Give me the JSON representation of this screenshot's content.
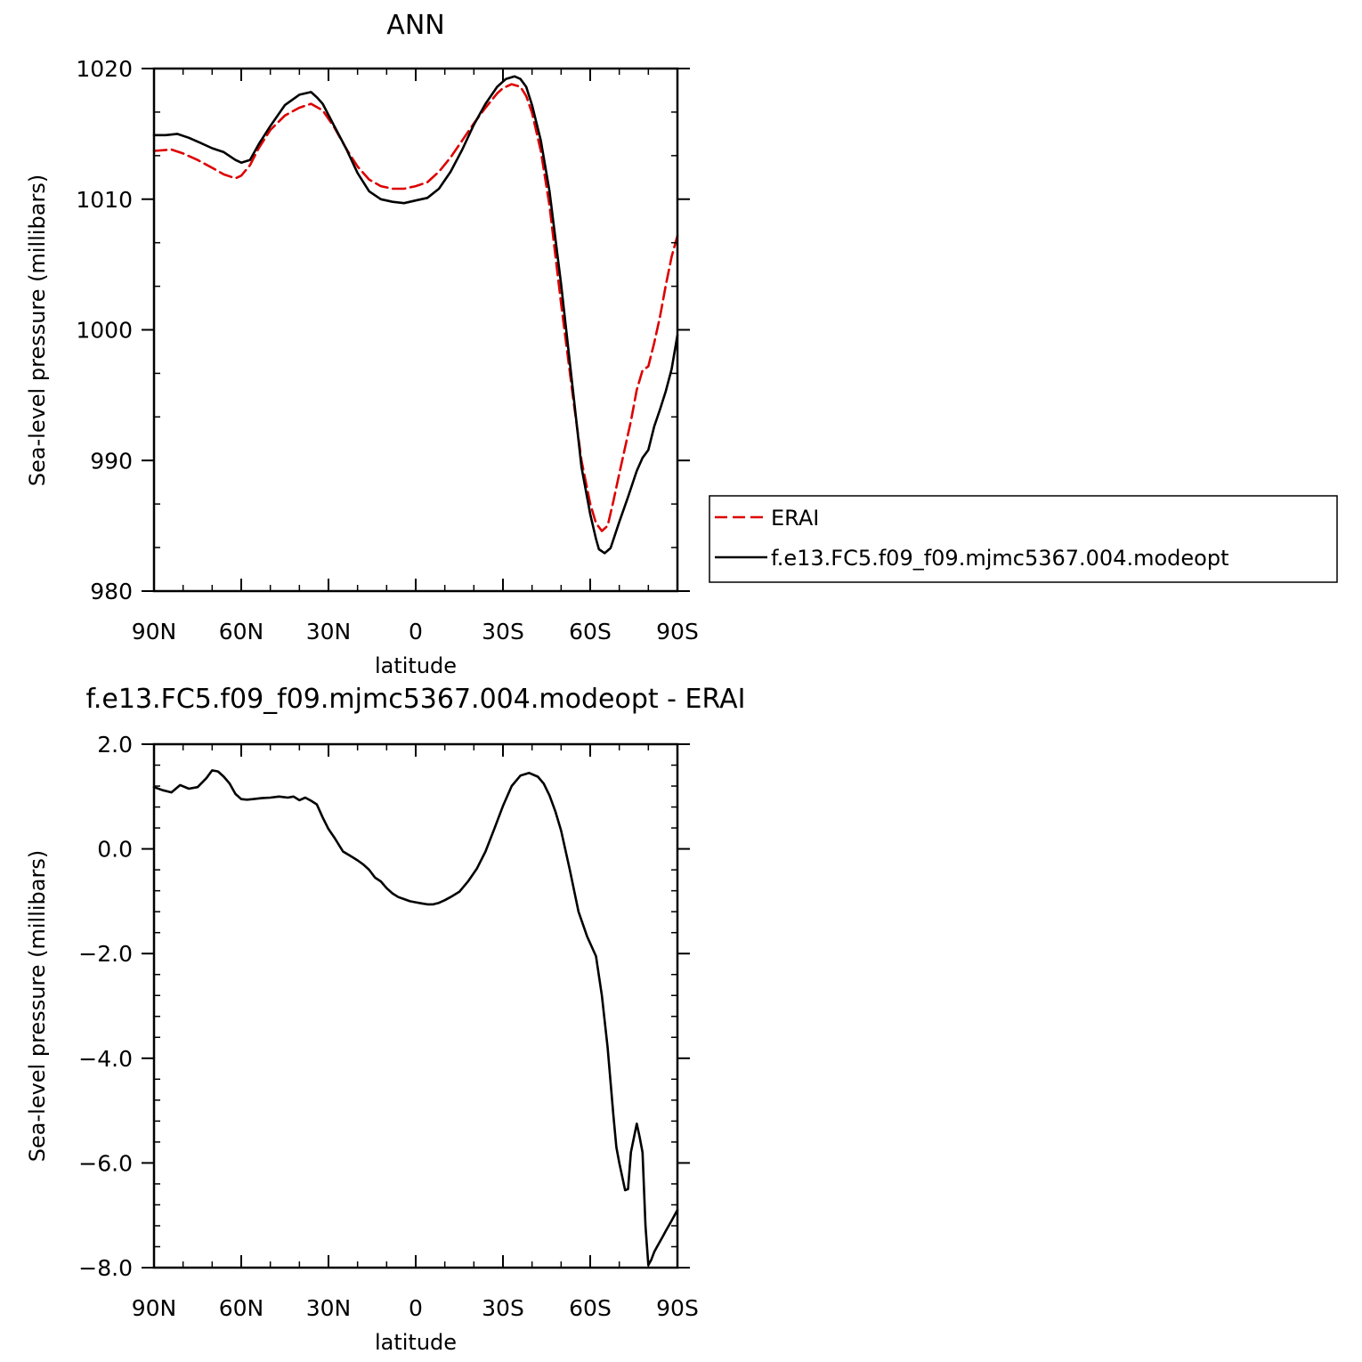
{
  "chart_data": [
    {
      "type": "line",
      "title": "ANN",
      "xlabel": "latitude",
      "ylabel": "Sea-level pressure (millibars)",
      "xlim": [
        90,
        -90
      ],
      "ylim": [
        980,
        1020
      ],
      "xticks": [
        90,
        60,
        30,
        0,
        -30,
        -60,
        -90
      ],
      "xtick_labels": [
        "90N",
        "60N",
        "30N",
        "0",
        "30S",
        "60S",
        "90S"
      ],
      "yticks": [
        980,
        990,
        1000,
        1010,
        1020
      ],
      "ytick_labels": [
        "980",
        "990",
        "1000",
        "1010",
        "1020"
      ],
      "legend_position": "right",
      "series": [
        {
          "name": "ERAI",
          "color": "#dd0000",
          "dash": "dashed",
          "x": [
            90,
            84,
            80,
            75,
            70,
            66,
            62,
            60,
            57,
            54,
            50,
            45,
            40,
            36,
            32,
            28,
            24,
            20,
            16,
            12,
            8,
            4,
            0,
            -4,
            -8,
            -12,
            -16,
            -20,
            -24,
            -28,
            -30,
            -33,
            -36,
            -38,
            -40,
            -43,
            -46,
            -50,
            -54,
            -57,
            -60,
            -62,
            -64,
            -66,
            -68,
            -70,
            -72,
            -74,
            -76,
            -78,
            -80,
            -82,
            -84,
            -86,
            -88,
            -90
          ],
          "y": [
            1013.7,
            1013.8,
            1013.5,
            1013.0,
            1012.4,
            1011.9,
            1011.6,
            1011.8,
            1012.6,
            1013.9,
            1015.3,
            1016.4,
            1017.0,
            1017.3,
            1016.8,
            1015.5,
            1013.9,
            1012.5,
            1011.5,
            1011.0,
            1010.8,
            1010.8,
            1011.0,
            1011.3,
            1012.1,
            1013.2,
            1014.5,
            1015.8,
            1017.0,
            1018.1,
            1018.5,
            1018.8,
            1018.6,
            1017.9,
            1016.6,
            1013.7,
            1009.5,
            1002.0,
            995.0,
            990.0,
            986.7,
            985.2,
            984.6,
            985.0,
            986.9,
            989.0,
            991.0,
            993.0,
            995.4,
            996.9,
            997.2,
            999.0,
            1001.0,
            1003.4,
            1005.6,
            1007.2
          ]
        },
        {
          "name": "f.e13.FC5.f09_f09.mjmc5367.004.modeopt",
          "color": "#000000",
          "dash": "solid",
          "x": [
            90,
            86,
            82,
            78,
            74,
            70,
            66,
            62,
            60,
            57,
            54,
            50,
            45,
            40,
            38,
            36,
            34,
            32,
            28,
            24,
            20,
            16,
            12,
            8,
            4,
            0,
            -4,
            -8,
            -12,
            -16,
            -20,
            -24,
            -28,
            -31,
            -34,
            -36,
            -38,
            -40,
            -43,
            -46,
            -50,
            -54,
            -57,
            -60,
            -62,
            -63,
            -65,
            -67,
            -70,
            -73,
            -76,
            -78,
            -80,
            -82,
            -84,
            -86,
            -88,
            -90
          ],
          "y": [
            1014.9,
            1014.9,
            1015.0,
            1014.7,
            1014.3,
            1013.9,
            1013.6,
            1013.0,
            1012.8,
            1013.0,
            1014.2,
            1015.6,
            1017.2,
            1018.0,
            1018.1,
            1018.2,
            1017.8,
            1017.3,
            1015.6,
            1013.9,
            1012.0,
            1010.6,
            1010.0,
            1009.8,
            1009.7,
            1009.9,
            1010.1,
            1010.8,
            1012.1,
            1013.8,
            1015.7,
            1017.3,
            1018.6,
            1019.2,
            1019.4,
            1019.2,
            1018.6,
            1017.2,
            1014.5,
            1010.6,
            1003.5,
            995.5,
            989.5,
            985.9,
            984.0,
            983.2,
            982.9,
            983.3,
            985.3,
            987.2,
            989.2,
            990.2,
            990.8,
            992.6,
            993.9,
            995.3,
            997.0,
            999.6
          ]
        }
      ]
    },
    {
      "type": "line",
      "title": "f.e13.FC5.f09_f09.mjmc5367.004.modeopt  -  ERAI",
      "xlabel": "latitude",
      "ylabel": "Sea-level pressure (millibars)",
      "xlim": [
        90,
        -90
      ],
      "ylim": [
        -8.0,
        2.0
      ],
      "xticks": [
        90,
        60,
        30,
        0,
        -30,
        -60,
        -90
      ],
      "xtick_labels": [
        "90N",
        "60N",
        "30N",
        "0",
        "30S",
        "60S",
        "90S"
      ],
      "yticks": [
        -8.0,
        -6.0,
        -4.0,
        -2.0,
        0.0,
        2.0
      ],
      "ytick_labels": [
        "−8.0",
        "−6.0",
        "−4.0",
        "−2.0",
        "0.0",
        "2.0"
      ],
      "series": [
        {
          "color": "#000000",
          "dash": "solid",
          "x": [
            90,
            87,
            84,
            81,
            78,
            75,
            72,
            70,
            68,
            66,
            64,
            62,
            60,
            58,
            56,
            53,
            50,
            47,
            44,
            42,
            40,
            38,
            36,
            34,
            32,
            30,
            28,
            25,
            22,
            20,
            18,
            16,
            14,
            12,
            10,
            8,
            6,
            4,
            2,
            0,
            -2,
            -4,
            -6,
            -8,
            -10,
            -12,
            -15,
            -18,
            -21,
            -24,
            -27,
            -30,
            -33,
            -36,
            -39,
            -42,
            -44,
            -46,
            -48,
            -50,
            -53,
            -56,
            -59,
            -62,
            -64,
            -66,
            -68,
            -69,
            -70,
            -72,
            -73,
            -74,
            -76,
            -77,
            -78,
            -79,
            -80,
            -81,
            -82,
            -83,
            -84,
            -85,
            -86,
            -87,
            -88,
            -89,
            -90
          ],
          "y": [
            1.18,
            1.12,
            1.08,
            1.22,
            1.15,
            1.18,
            1.35,
            1.5,
            1.48,
            1.38,
            1.25,
            1.05,
            0.95,
            0.94,
            0.95,
            0.97,
            0.98,
            1.0,
            0.98,
            1.0,
            0.93,
            0.98,
            0.92,
            0.85,
            0.6,
            0.38,
            0.22,
            -0.05,
            -0.15,
            -0.22,
            -0.3,
            -0.4,
            -0.55,
            -0.62,
            -0.75,
            -0.85,
            -0.92,
            -0.96,
            -1.0,
            -1.02,
            -1.04,
            -1.06,
            -1.06,
            -1.03,
            -0.98,
            -0.92,
            -0.82,
            -0.62,
            -0.38,
            -0.05,
            0.38,
            0.82,
            1.2,
            1.4,
            1.45,
            1.38,
            1.25,
            1.02,
            0.72,
            0.35,
            -0.4,
            -1.2,
            -1.68,
            -2.05,
            -2.8,
            -3.8,
            -5.1,
            -5.7,
            -6.0,
            -6.52,
            -6.5,
            -5.8,
            -5.25,
            -5.5,
            -5.8,
            -7.2,
            -7.95,
            -7.85,
            -7.7,
            -7.6,
            -7.5,
            -7.4,
            -7.3,
            -7.2,
            -7.1,
            -7.0,
            -6.9
          ]
        }
      ]
    }
  ]
}
